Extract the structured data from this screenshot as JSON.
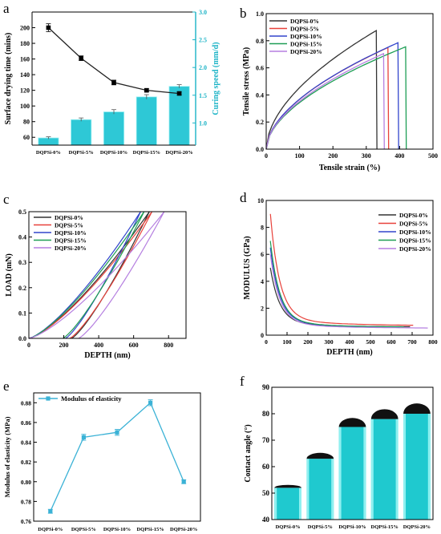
{
  "chart_data": [
    {
      "panel": "a",
      "type": "bar",
      "categories": [
        "DQPSi-0%",
        "DQPSi-5%",
        "DQPSi-10%",
        "DQPSi-15%",
        "DQPSi-20%"
      ],
      "ylabel": "Surface drying time (mins)",
      "y2label": "Curing speed (mm/d)",
      "ylim": [
        50,
        220
      ],
      "yticks": [
        60,
        80,
        100,
        120,
        140,
        160,
        180,
        200
      ],
      "y2lim": [
        0.6,
        3.0
      ],
      "y2ticks": [
        1.0,
        1.5,
        2.0,
        2.5,
        3.0
      ],
      "y2ticklabels": [
        "1.0",
        "1.5",
        "2.0",
        "2.5",
        "3.0"
      ],
      "bars_axis": "right",
      "line_axis": "left",
      "bar_values": [
        0.73,
        1.06,
        1.2,
        1.47,
        1.66
      ],
      "bar_errors": [
        0.02,
        0.03,
        0.04,
        0.04,
        0.03
      ],
      "line_values": [
        200,
        161,
        130,
        120,
        116
      ],
      "line_errors": [
        5,
        3,
        3,
        2,
        2
      ],
      "colors": {
        "bar": "#2ec8d6",
        "line": "#222222",
        "right_axis": "#1bb3c6"
      }
    },
    {
      "panel": "b",
      "type": "line",
      "xlabel": "Tensile strain (%)",
      "ylabel": "Tensile stress (MPa)",
      "xlim": [
        0,
        500
      ],
      "ylim": [
        0,
        1.0
      ],
      "xticks": [
        0,
        100,
        200,
        300,
        400,
        500
      ],
      "yticks": [
        0.0,
        0.2,
        0.4,
        0.6,
        0.8,
        1.0
      ],
      "yticklabels": [
        "0.0",
        "0.2",
        "0.4",
        "0.6",
        "0.8",
        "1.0"
      ],
      "legend": "top-left",
      "series": [
        {
          "name": "DQPSi-0%",
          "color": "#333333",
          "break_x": 330,
          "peak_y": 0.875
        },
        {
          "name": "DQPSi-5%",
          "color": "#e8413a",
          "break_x": 365,
          "peak_y": 0.75
        },
        {
          "name": "DQPSi-10%",
          "color": "#3245cc",
          "break_x": 395,
          "peak_y": 0.785
        },
        {
          "name": "DQPSi-15%",
          "color": "#1e9e55",
          "break_x": 418,
          "peak_y": 0.755
        },
        {
          "name": "DQPSi-20%",
          "color": "#b57fe0",
          "break_x": 352,
          "peak_y": 0.705
        }
      ]
    },
    {
      "panel": "c",
      "type": "line",
      "xlabel": "DEPTH (nm)",
      "ylabel": "LOAD (mN)",
      "xlim": [
        0,
        900
      ],
      "ylim": [
        0,
        0.5
      ],
      "xticks": [
        0,
        200,
        400,
        600,
        800
      ],
      "yticks": [
        0.0,
        0.1,
        0.2,
        0.3,
        0.4,
        0.5
      ],
      "yticklabels": [
        "0.0",
        "0.1",
        "0.2",
        "0.3",
        "0.4",
        "0.5"
      ],
      "legend": "top-left",
      "series": [
        {
          "name": "DQPSi-0%",
          "color": "#333333",
          "max_depth": 690,
          "residual_depth": 245
        },
        {
          "name": "DQPSi-5%",
          "color": "#e8413a",
          "max_depth": 705,
          "residual_depth": 235
        },
        {
          "name": "DQPSi-10%",
          "color": "#3245cc",
          "max_depth": 640,
          "residual_depth": 210
        },
        {
          "name": "DQPSi-15%",
          "color": "#1e9e55",
          "max_depth": 660,
          "residual_depth": 195
        },
        {
          "name": "DQPSi-20%",
          "color": "#b57fe0",
          "max_depth": 775,
          "residual_depth": 285
        }
      ]
    },
    {
      "panel": "d",
      "type": "line",
      "xlabel": "DEPTH (nm)",
      "ylabel": "MODULUS (GPa)",
      "xlim": [
        0,
        800
      ],
      "ylim": [
        0,
        10
      ],
      "xticks": [
        0,
        100,
        200,
        300,
        400,
        500,
        600,
        700,
        800
      ],
      "yticks": [
        0,
        2,
        4,
        6,
        8,
        10
      ],
      "legend": "right",
      "series": [
        {
          "name": "DQPSi-0%",
          "color": "#333333",
          "start_y": 5.0,
          "end_x": 690,
          "end_y": 0.55
        },
        {
          "name": "DQPSi-5%",
          "color": "#e8413a",
          "start_y": 9.0,
          "end_x": 705,
          "end_y": 0.6
        },
        {
          "name": "DQPSi-10%",
          "color": "#3245cc",
          "start_y": 6.5,
          "end_x": 640,
          "end_y": 0.5
        },
        {
          "name": "DQPSi-15%",
          "color": "#1e9e55",
          "start_y": 7.0,
          "end_x": 660,
          "end_y": 0.5
        },
        {
          "name": "DQPSi-20%",
          "color": "#b57fe0",
          "start_y": 6.0,
          "end_x": 775,
          "end_y": 0.45
        }
      ]
    },
    {
      "panel": "e",
      "type": "line",
      "categories": [
        "DQPSi-0%",
        "DQPSi-5%",
        "DQPSi-10%",
        "DQPSi-15%",
        "DQPSi-20%"
      ],
      "ylabel": "Modulus of elasticity (MPa)",
      "ylim": [
        0.76,
        0.89
      ],
      "yticks": [
        0.76,
        0.78,
        0.8,
        0.82,
        0.84,
        0.86,
        0.88
      ],
      "yticklabels": [
        "0.76",
        "0.78",
        "0.80",
        "0.82",
        "0.84",
        "0.86",
        "0.88"
      ],
      "legend": "top-left",
      "series": [
        {
          "name": "Modulus of elasticity",
          "color": "#3bb2d6",
          "values": [
            0.77,
            0.845,
            0.85,
            0.88,
            0.8
          ],
          "errors": [
            0.002,
            0.003,
            0.003,
            0.003,
            0.002
          ]
        }
      ]
    },
    {
      "panel": "f",
      "type": "bar",
      "categories": [
        "DQPSi-0%",
        "DQPSi-5%",
        "DQPSi-10%",
        "DQPSi-15%",
        "DQPSi-20%"
      ],
      "ylabel": "Contact angle (°)",
      "ylim": [
        40,
        90
      ],
      "yticks": [
        40,
        50,
        60,
        70,
        80,
        90
      ],
      "values": [
        52,
        63,
        75,
        78,
        80
      ],
      "colors": {
        "bar": "#1fc9cf",
        "bar_edge": "#8ff0f0",
        "drop": "#111111"
      }
    }
  ]
}
